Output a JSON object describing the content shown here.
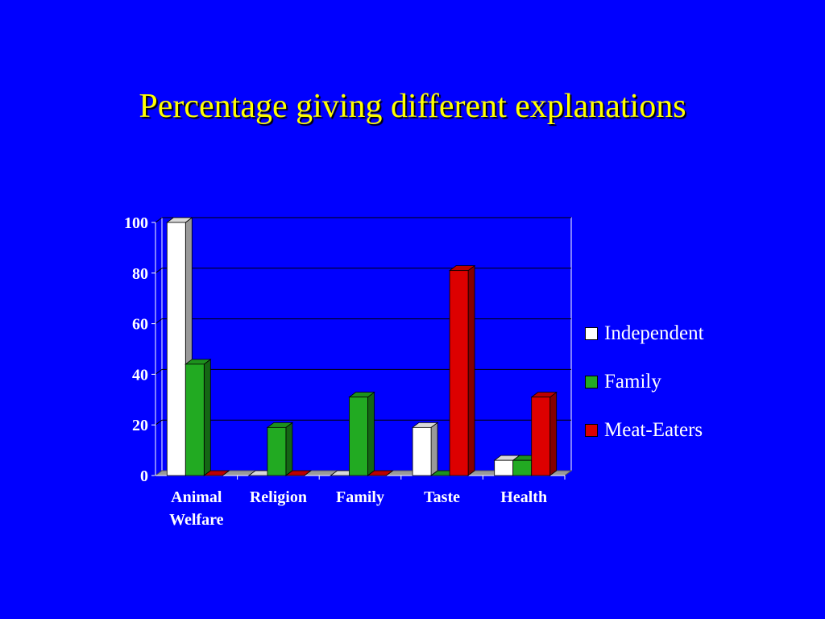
{
  "title": "Percentage giving different explanations",
  "colors": {
    "background": "#0000FF",
    "title": "#FFFF00",
    "Independent": "#FFFFFF",
    "Family": "#22AA22",
    "Meat-Eaters": "#DD0000"
  },
  "chart_data": {
    "type": "bar",
    "title": "Percentage giving different explanations",
    "xlabel": "",
    "ylabel": "",
    "categories": [
      [
        "Animal",
        "Welfare"
      ],
      [
        "Religion"
      ],
      [
        "Family"
      ],
      [
        "Taste"
      ],
      [
        "Health"
      ]
    ],
    "series": [
      {
        "name": "Independent",
        "values": [
          100,
          0,
          0,
          19,
          6
        ]
      },
      {
        "name": "Family",
        "values": [
          44,
          19,
          31,
          0,
          6
        ]
      },
      {
        "name": "Meat-Eaters",
        "values": [
          0,
          0,
          0,
          81,
          31
        ]
      }
    ],
    "yticks": [
      0,
      20,
      40,
      60,
      80,
      100
    ],
    "ylim": [
      0,
      100
    ],
    "grid": true,
    "legend": "right"
  }
}
